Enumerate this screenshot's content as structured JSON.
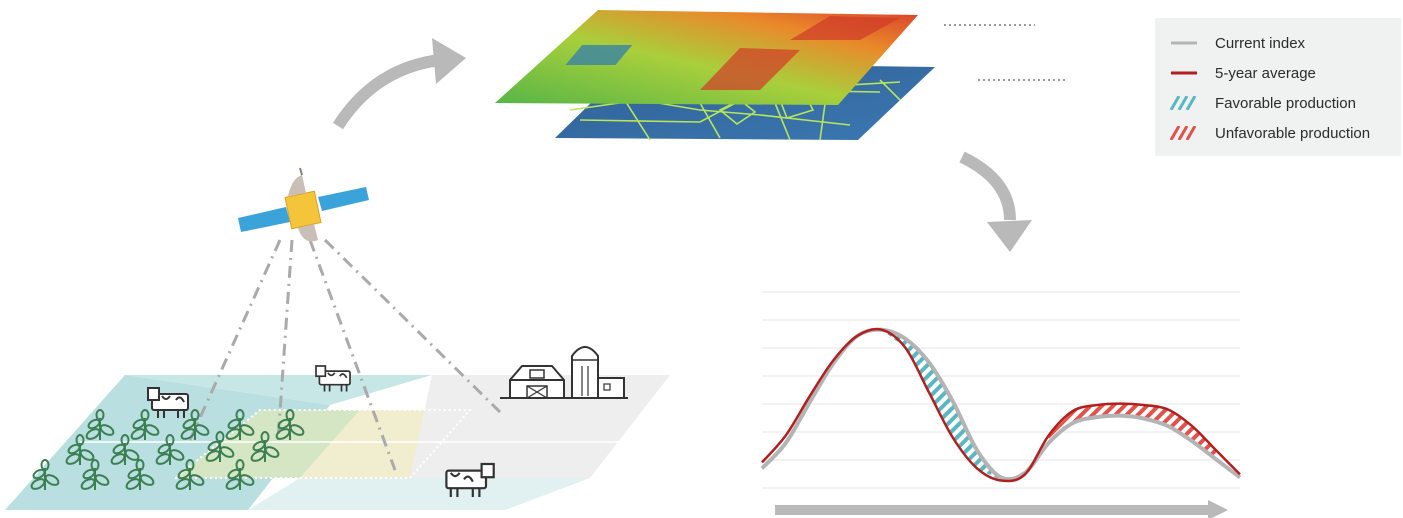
{
  "legend": {
    "items": [
      {
        "label": "Current index",
        "kind": "line",
        "color": "#b4b4b4"
      },
      {
        "label": "5-year average",
        "kind": "line",
        "color": "#b1201f"
      },
      {
        "label": "Favorable production",
        "kind": "hatch",
        "color": "#5ab7c1"
      },
      {
        "label": "Unfavorable production",
        "kind": "hatch",
        "color": "#e0524a"
      }
    ]
  },
  "colors": {
    "grey_arrow": "#b9b9b9",
    "teal_field": "#b9dfe0",
    "green_field": "#d5e6c4",
    "yellow_field": "#f1edcf",
    "grey_field": "#eeeeee",
    "satellite_panel": "#3aa3d9",
    "satellite_body": "#f4c53a",
    "plant": "#3b7f52",
    "icon_dark": "#333333"
  },
  "icons": [
    "satellite-icon",
    "cow-icon",
    "barn-icon",
    "silo-icon",
    "plant-icon"
  ],
  "chart_data": {
    "type": "line",
    "title": "",
    "xlabel": "",
    "ylabel": "",
    "x": [
      0,
      1,
      2,
      3,
      4,
      5,
      6,
      7,
      8,
      9,
      10,
      11,
      12,
      13,
      14,
      15,
      16,
      17,
      18,
      19,
      20
    ],
    "series": [
      {
        "name": "Current index",
        "values": [
          0.08,
          0.25,
          0.52,
          0.78,
          0.96,
          1.0,
          0.94,
          0.78,
          0.52,
          0.2,
          0.02,
          0.05,
          0.25,
          0.38,
          0.42,
          0.43,
          0.41,
          0.36,
          0.26,
          0.14,
          0.02
        ]
      },
      {
        "name": "5-year average",
        "values": [
          0.12,
          0.3,
          0.56,
          0.8,
          0.96,
          1.0,
          0.88,
          0.58,
          0.28,
          0.08,
          0.0,
          0.04,
          0.3,
          0.46,
          0.5,
          0.51,
          0.5,
          0.47,
          0.36,
          0.2,
          0.04
        ]
      }
    ],
    "ylim": [
      -0.05,
      1.25
    ],
    "grid": true,
    "regions": [
      {
        "label": "Favorable production",
        "from": 5,
        "to": 10
      },
      {
        "label": "Unfavorable production",
        "from": 12,
        "to": 19
      }
    ]
  }
}
